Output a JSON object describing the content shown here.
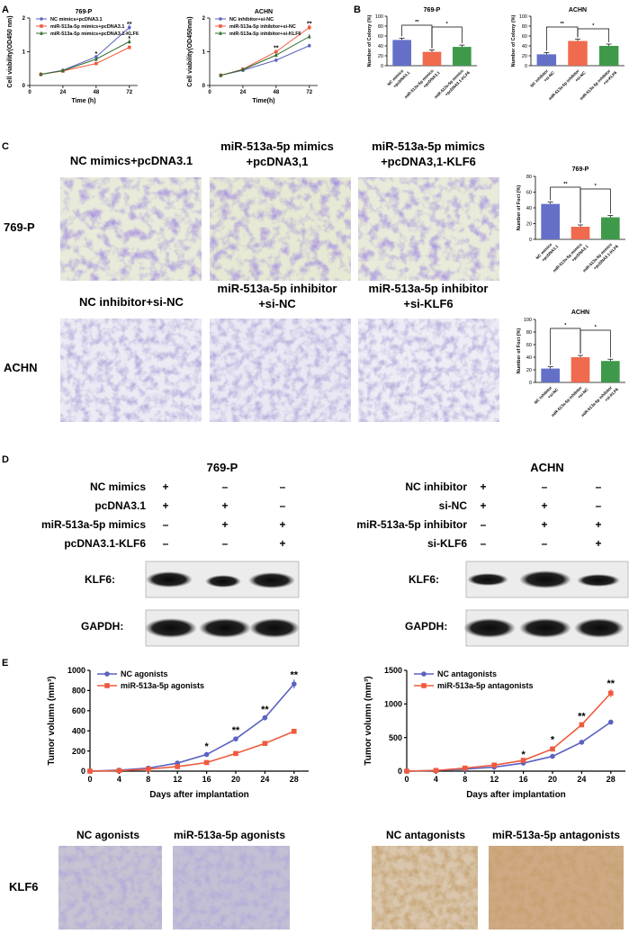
{
  "panel_letters": {
    "a": "A",
    "b": "B",
    "c": "C",
    "d": "D",
    "e": "E"
  },
  "colors": {
    "nc": "#5b62c1",
    "mimics": "#ef5a3e",
    "klf6": "#2f6b2f",
    "bar_nc": "#6470c8",
    "bar_mimic": "#f06a4d",
    "bar_klf6": "#3e9a4a"
  },
  "chart_data": [
    {
      "id": "A1",
      "type": "line",
      "title": "769-P",
      "xlabel": "Time (h)",
      "ylabel": "Cell viability(OD450 nm)",
      "xticks": [
        "0",
        "24",
        "48",
        "72"
      ],
      "yticks": [
        "0",
        "1",
        "2"
      ],
      "xlim": [
        0,
        78
      ],
      "ylim": [
        0,
        2
      ],
      "x": [
        8,
        24,
        48,
        72
      ],
      "series": [
        {
          "name": "NC mimics+pcDNA3.1",
          "values": [
            0.33,
            0.45,
            0.85,
            1.72
          ]
        },
        {
          "name": "miR-513a-5p mimics+pcDNA3.1",
          "values": [
            0.33,
            0.43,
            0.65,
            1.13
          ]
        },
        {
          "name": "miR-513a-5p mimics+pcDNA3.1-KLF6",
          "values": [
            0.33,
            0.44,
            0.78,
            1.3
          ]
        }
      ],
      "annotations": [
        "*",
        "**",
        "*"
      ]
    },
    {
      "id": "A2",
      "type": "line",
      "title": "ACHN",
      "xlabel": "Time(h)",
      "ylabel": "Cell viability(OD450nm)",
      "xticks": [
        "0",
        "24",
        "48",
        "72"
      ],
      "yticks": [
        "0",
        "1",
        "2"
      ],
      "xlim": [
        0,
        78
      ],
      "ylim": [
        0,
        2
      ],
      "x": [
        8,
        24,
        48,
        72
      ],
      "series": [
        {
          "name": "NC inhibitor+si-NC",
          "values": [
            0.3,
            0.45,
            0.75,
            1.18
          ]
        },
        {
          "name": "miR-513a-5p inhibitor+si-NC",
          "values": [
            0.3,
            0.48,
            1.0,
            1.72
          ]
        },
        {
          "name": "miR-513a-5p inhibitor+si-KLF6",
          "values": [
            0.3,
            0.47,
            0.9,
            1.45
          ]
        }
      ],
      "annotations": [
        "**",
        "**"
      ]
    },
    {
      "id": "B1",
      "type": "bar",
      "title": "769-P",
      "ylabel": "Number of Colony (%)",
      "ylim": [
        0,
        100
      ],
      "yticks": [
        "0",
        "20",
        "40",
        "60",
        "80",
        "100"
      ],
      "categories": [
        "NC mimics\n+pcDNA3.1",
        "miR-513a-5p mimics\n+pcDNA3.1",
        "miR-513a-5p mimics\n+pcDNA3.1-KLF6"
      ],
      "values": [
        52,
        28,
        38
      ],
      "annotations": [
        "**",
        "*"
      ]
    },
    {
      "id": "B2",
      "type": "bar",
      "title": "ACHN",
      "ylabel": "Number of Colony (%)",
      "ylim": [
        0,
        100
      ],
      "yticks": [
        "0",
        "20",
        "40",
        "60",
        "80",
        "100"
      ],
      "categories": [
        "NC inhibitor\n+si-NC",
        "miR-513a-5p inhibitor\n+si-NC",
        "miR-513a-5p inhibitor\n+si-KLF6"
      ],
      "values": [
        23,
        50,
        40
      ],
      "annotations": [
        "**",
        "*"
      ]
    },
    {
      "id": "C1",
      "type": "bar",
      "title": "769-P",
      "ylabel": "Number of Foci (%)",
      "ylim": [
        0,
        80
      ],
      "yticks": [
        "0",
        "20",
        "40",
        "60",
        "80"
      ],
      "categories": [
        "NC mimics\n+pcDNA3.1",
        "miR-513a-5p mimics\n+pcDNA3.1",
        "miR-513a-5p mimics\n+pcDNA3.1-KLF6"
      ],
      "values": [
        45,
        16,
        28
      ],
      "annotations": [
        "**",
        "*"
      ]
    },
    {
      "id": "C2",
      "type": "bar",
      "title": "ACHN",
      "ylabel": "Number of Foci (%)",
      "ylim": [
        0,
        100
      ],
      "yticks": [
        "0",
        "20",
        "40",
        "60",
        "80",
        "100"
      ],
      "categories": [
        "NC inhibitor\n+si-NC",
        "miR-513a-5p inhibitor\n+si-NC",
        "miR-513a-5p inhibitor\n+si-KLF6"
      ],
      "values": [
        22,
        40,
        34
      ],
      "annotations": [
        "*",
        "*"
      ]
    },
    {
      "id": "E1",
      "type": "line",
      "xlabel": "Days after implantation",
      "ylabel": "Tumor volumn (mm³)",
      "xticks": [
        "0",
        "4",
        "8",
        "12",
        "16",
        "20",
        "24",
        "28"
      ],
      "yticks": [
        "0",
        "200",
        "400",
        "600",
        "800",
        "1000"
      ],
      "xlim": [
        0,
        30
      ],
      "ylim": [
        0,
        1000
      ],
      "x": [
        0,
        4,
        8,
        12,
        16,
        20,
        24,
        28
      ],
      "series": [
        {
          "name": "NC agonists",
          "values": [
            0,
            10,
            30,
            80,
            165,
            320,
            530,
            865
          ]
        },
        {
          "name": "miR-513a-5p agonists",
          "values": [
            0,
            5,
            20,
            45,
            85,
            175,
            275,
            395
          ]
        }
      ],
      "annotations": [
        "*",
        "**",
        "**",
        "**"
      ]
    },
    {
      "id": "E2",
      "type": "line",
      "xlabel": "Days after implantation",
      "ylabel": "Tumor volumn (mm³)",
      "xticks": [
        "0",
        "4",
        "8",
        "12",
        "16",
        "20",
        "24",
        "28"
      ],
      "yticks": [
        "0",
        "500",
        "1000",
        "1500"
      ],
      "xlim": [
        0,
        30
      ],
      "ylim": [
        0,
        1500
      ],
      "x": [
        0,
        4,
        8,
        12,
        16,
        20,
        24,
        28
      ],
      "series": [
        {
          "name": "NC antagonists",
          "values": [
            0,
            10,
            30,
            60,
            120,
            220,
            430,
            730
          ]
        },
        {
          "name": "miR-513a-5p antagonists",
          "values": [
            0,
            10,
            45,
            90,
            160,
            330,
            690,
            1160
          ]
        }
      ],
      "annotations": [
        "*",
        "*",
        "**",
        "**"
      ]
    }
  ],
  "panel_c": {
    "col_titles_top": [
      "NC mimics+pcDNA3.1",
      "miR-513a-5p mimics",
      "+pcDNA3,1",
      "miR-513a-5p mimics",
      "+pcDNA3,1-KLF6"
    ],
    "col_titles_bottom": [
      "NC inhibitor+si-NC",
      "miR-513a-5p inhibitor",
      "+si-NC",
      "miR-513a-5p inhibitor",
      "+si-KLF6"
    ],
    "row_labels": [
      "769-P",
      "ACHN"
    ]
  },
  "panel_d": {
    "left_title": "769-P",
    "right_title": "ACHN",
    "left_rows": [
      {
        "label": "NC mimics",
        "signs": [
          "+",
          "–",
          "–"
        ]
      },
      {
        "label": "pcDNA3.1",
        "signs": [
          "+",
          "+",
          "–"
        ]
      },
      {
        "label": "miR-513a-5p mimics",
        "signs": [
          "–",
          "+",
          "+"
        ]
      },
      {
        "label": "pcDNA3.1-KLF6",
        "signs": [
          "–",
          "–",
          "+"
        ]
      }
    ],
    "right_rows": [
      {
        "label": "NC inhibitor",
        "signs": [
          "+",
          "–",
          "–"
        ]
      },
      {
        "label": "si-NC",
        "signs": [
          "+",
          "+",
          "–"
        ]
      },
      {
        "label": "miR-513a-5p inhibitor",
        "signs": [
          "–",
          "+",
          "+"
        ]
      },
      {
        "label": "si-KLF6",
        "signs": [
          "–",
          "–",
          "+"
        ]
      }
    ],
    "blot_labels": [
      "KLF6:",
      "GAPDH:"
    ]
  },
  "panel_ihc": {
    "titles": [
      "NC agonists",
      "miR-513a-5p agonists",
      "NC antagonists",
      "miR-513a-5p antagonists"
    ],
    "row_label": "KLF6"
  }
}
